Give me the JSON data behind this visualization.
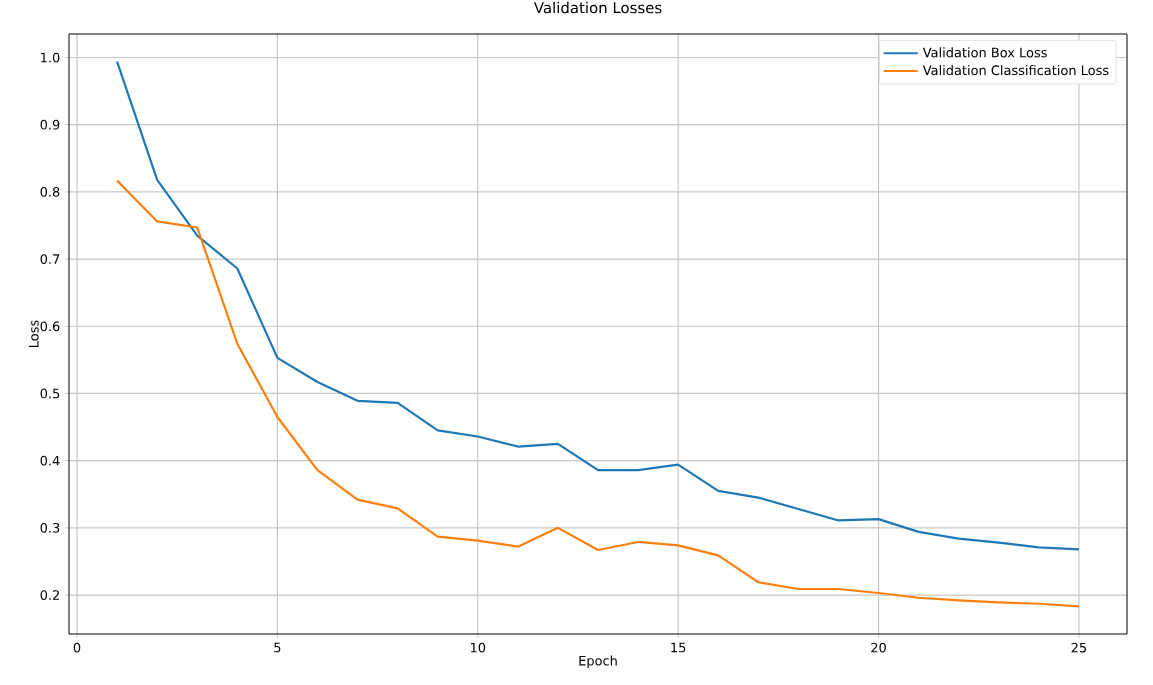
{
  "chart_data": {
    "type": "line",
    "title": "Validation Losses",
    "xlabel": "Epoch",
    "ylabel": "Loss",
    "x": [
      1,
      2,
      3,
      4,
      5,
      6,
      7,
      8,
      9,
      10,
      11,
      12,
      13,
      14,
      15,
      16,
      17,
      18,
      19,
      20,
      21,
      22,
      23,
      24,
      25
    ],
    "series": [
      {
        "name": "Validation Box Loss",
        "color": "#1f77b4",
        "values": [
          0.994,
          0.818,
          0.735,
          0.686,
          0.553,
          0.517,
          0.489,
          0.486,
          0.445,
          0.436,
          0.421,
          0.425,
          0.386,
          0.386,
          0.394,
          0.355,
          0.345,
          0.328,
          0.311,
          0.313,
          0.294,
          0.284,
          0.278,
          0.271,
          0.268
        ]
      },
      {
        "name": "Validation Classification Loss",
        "color": "#ff7f0e",
        "values": [
          0.817,
          0.756,
          0.747,
          0.574,
          0.465,
          0.386,
          0.342,
          0.329,
          0.287,
          0.281,
          0.272,
          0.3,
          0.267,
          0.279,
          0.274,
          0.259,
          0.219,
          0.209,
          0.209,
          0.203,
          0.196,
          0.192,
          0.189,
          0.187,
          0.183
        ]
      }
    ],
    "xlim": [
      -0.2,
      26.2
    ],
    "ylim": [
      0.142,
      1.035
    ],
    "xticks": [
      0,
      5,
      10,
      15,
      20,
      25
    ],
    "yticks": [
      {
        "value": 0.2,
        "label": "0.2"
      },
      {
        "value": 0.3,
        "label": "0.3"
      },
      {
        "value": 0.4,
        "label": "0.4"
      },
      {
        "value": 0.5,
        "label": "0.5"
      },
      {
        "value": 0.6,
        "label": "0.6"
      },
      {
        "value": 0.7,
        "label": "0.7"
      },
      {
        "value": 0.8,
        "label": "0.8"
      },
      {
        "value": 0.9,
        "label": "0.9"
      },
      {
        "value": 1.0,
        "label": "1.0"
      }
    ],
    "grid": true,
    "legend": "top right",
    "line_style": "solid",
    "marker": "none"
  }
}
